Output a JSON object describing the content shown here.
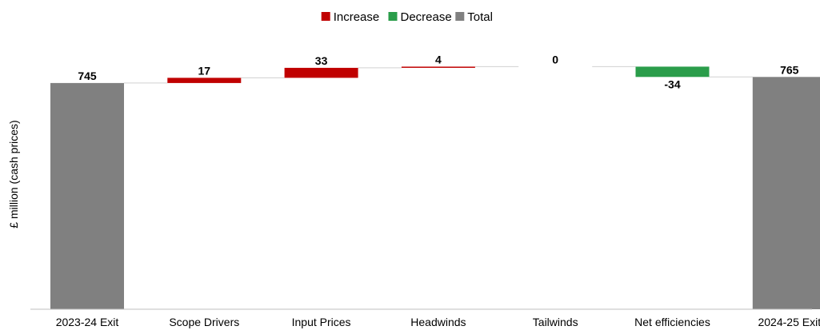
{
  "chart_data": {
    "type": "bar",
    "subtype": "waterfall",
    "title": "",
    "xlabel": "",
    "ylabel": "£ million (cash prices)",
    "ylim": [
      0,
      800
    ],
    "grid": false,
    "legend": {
      "placement": "top-center",
      "entries": [
        {
          "label": "Increase",
          "color": "#C00000"
        },
        {
          "label": "Decrease",
          "color": "#2A9D4A"
        },
        {
          "label": "Total",
          "color": "#808080"
        }
      ]
    },
    "categories": [
      "2023-24 Exit",
      "Scope Drivers",
      "Input Prices",
      "Headwinds",
      "Tailwinds",
      "Net efficiencies",
      "2024-25 Exit"
    ],
    "values": [
      745,
      17,
      33,
      4,
      0,
      -34,
      765
    ],
    "labels": [
      "745",
      "17",
      "33",
      "4",
      "0",
      "-34",
      "765"
    ],
    "kinds": [
      "total",
      "increase",
      "increase",
      "increase",
      "increase",
      "decrease",
      "total"
    ]
  }
}
